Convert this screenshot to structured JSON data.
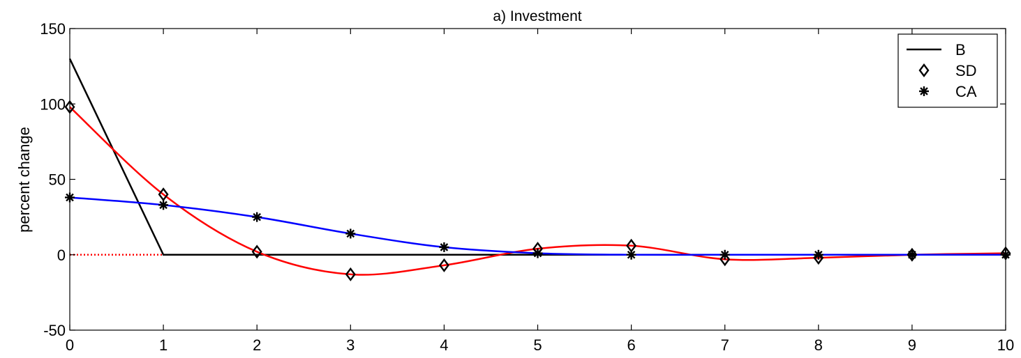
{
  "chart_data": {
    "type": "line",
    "title": "a) Investment",
    "xlabel": "",
    "ylabel": "percent change",
    "xlim": [
      0,
      10
    ],
    "ylim": [
      -50,
      150
    ],
    "xticks": [
      0,
      1,
      2,
      3,
      4,
      5,
      6,
      7,
      8,
      9,
      10
    ],
    "yticks": [
      -50,
      0,
      50,
      100,
      150
    ],
    "grid": false,
    "legend_position": "top-right",
    "zero_line_color": "#ff0000",
    "series": [
      {
        "name": "B",
        "style": "line",
        "color": "#000000",
        "x": [
          0,
          1,
          2,
          3,
          4,
          5,
          6,
          7,
          8,
          9,
          10
        ],
        "y": [
          130,
          0,
          0,
          0,
          0,
          0,
          0,
          0,
          0,
          0,
          0
        ]
      },
      {
        "name": "SD",
        "style": "markers",
        "marker": "diamond",
        "color": "#000000",
        "line_color": "#ff0000",
        "x": [
          0,
          1,
          2,
          3,
          4,
          5,
          6,
          7,
          8,
          9,
          10
        ],
        "y": [
          98,
          40,
          2,
          -13,
          -7,
          4,
          6,
          -3,
          -2,
          0,
          1
        ]
      },
      {
        "name": "CA",
        "style": "markers",
        "marker": "asterisk",
        "color": "#000000",
        "line_color": "#0000ff",
        "x": [
          0,
          1,
          2,
          3,
          4,
          5,
          6,
          7,
          8,
          9,
          10
        ],
        "y": [
          38,
          33,
          25,
          14,
          5,
          1,
          0,
          0,
          0,
          0,
          0
        ]
      }
    ]
  }
}
